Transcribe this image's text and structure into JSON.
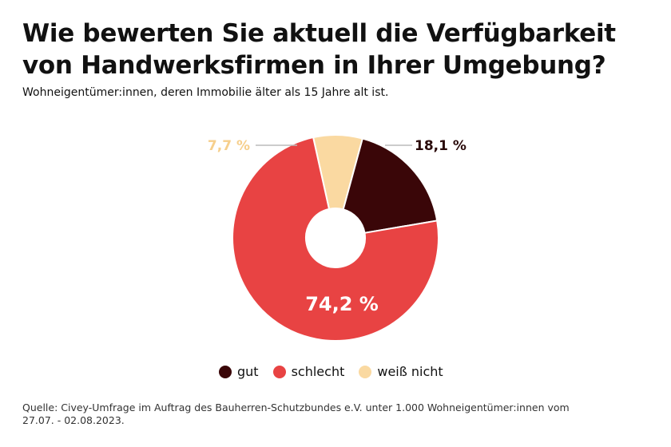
{
  "chart_data": {
    "type": "pie",
    "title": "Wie bewerten Sie aktuell die Verfügbarkeit von Handwerksfirmen in Ihrer Umgebung?",
    "subtitle": "Wohneigentümer:innen, deren Immobilie älter als 15 Jahre alt ist.",
    "donut": true,
    "categories": [
      "gut",
      "schlecht",
      "weiß nicht"
    ],
    "values": [
      18.1,
      74.2,
      7.7
    ],
    "value_labels": [
      "18,1 %",
      "74,2 %",
      "7,7 %"
    ],
    "colors": [
      "#3a0608",
      "#e84343",
      "#fad9a1"
    ],
    "label_colors": [
      "#2a0a0a",
      "#ffffff",
      "#f6cf8c"
    ],
    "legend_position": "bottom",
    "source": "Quelle: Civey-Umfrage im Auftrag des Bauherren-Schutzbundes e.V. unter 1.000 Wohneigentümer:innen vom 27.07. - 02.08.2023."
  }
}
